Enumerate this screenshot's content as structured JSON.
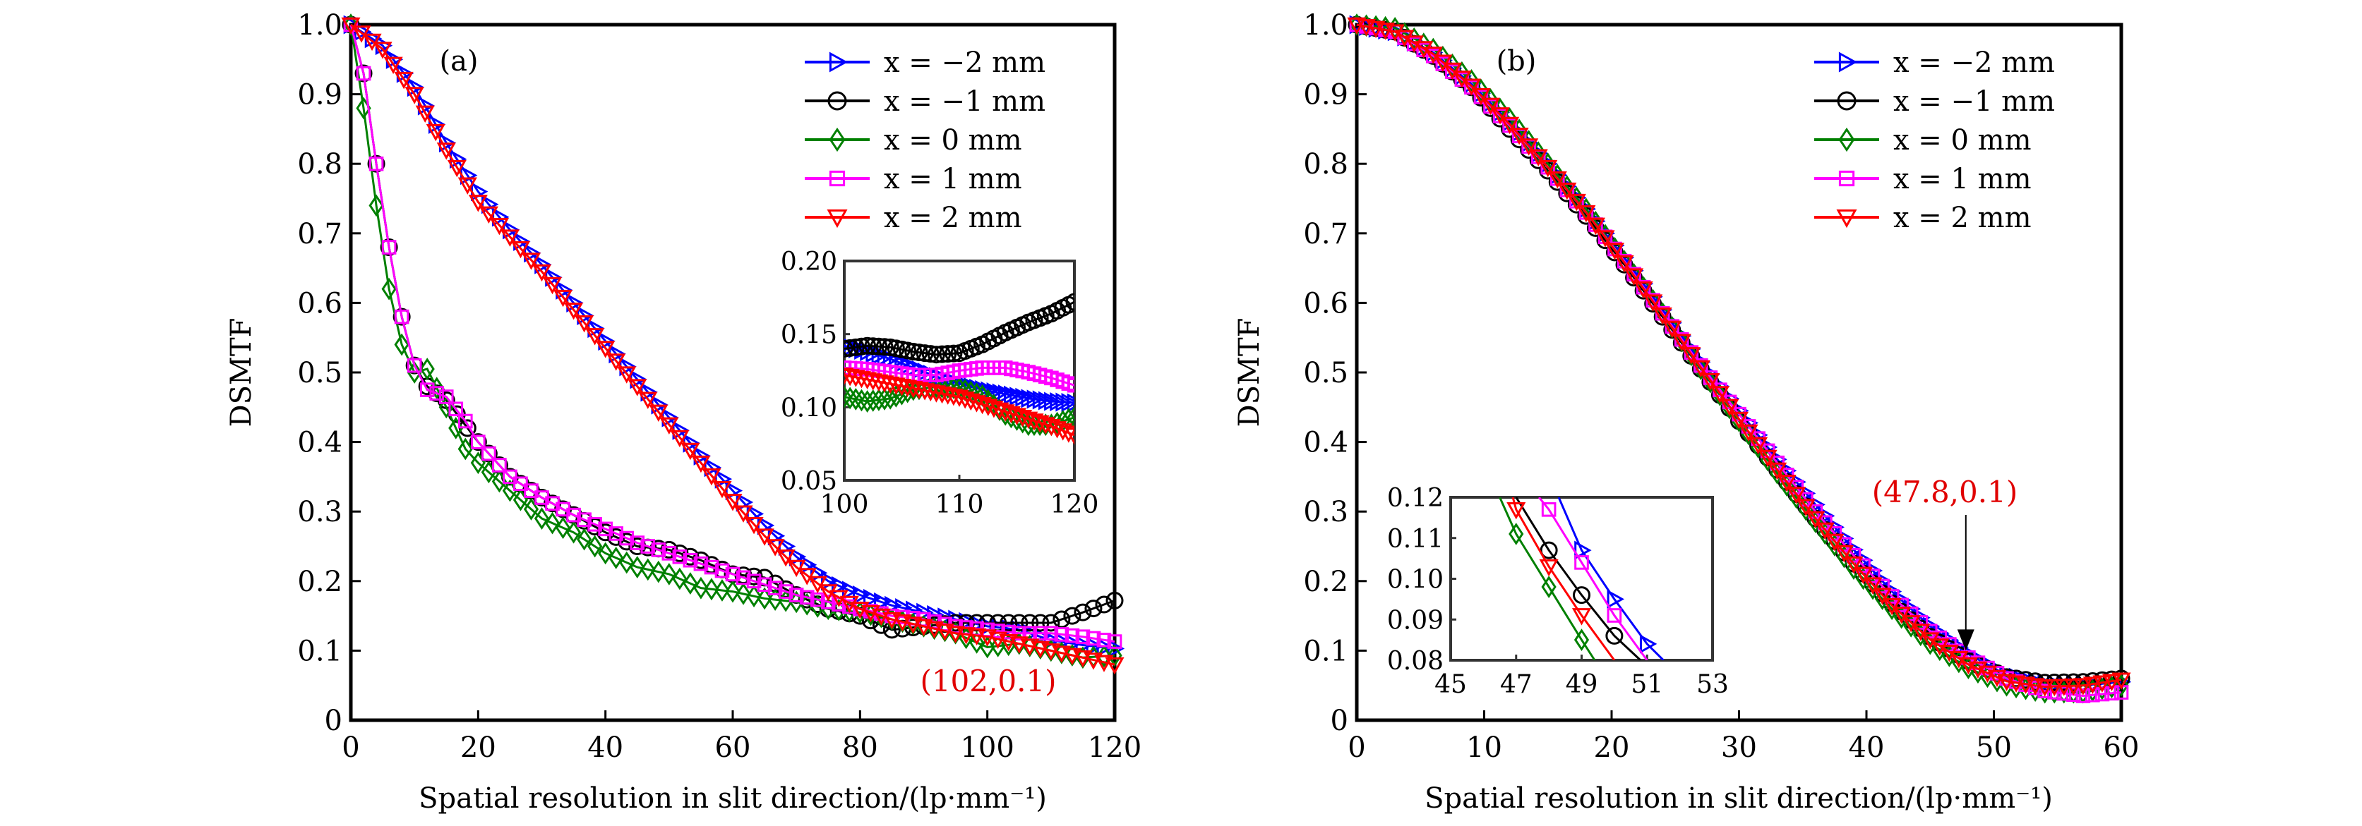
{
  "figure": {
    "panels": [
      "a",
      "b"
    ]
  },
  "chart_data": [
    {
      "id": "a",
      "type": "line",
      "panel_label": "(a)",
      "title": "",
      "xlabel": "Spatial resolution in slit direction/(lp·mm⁻¹)",
      "ylabel": "DSMTF",
      "xlim": [
        0,
        120
      ],
      "ylim": [
        0,
        1.0
      ],
      "xticks": [
        "0",
        "20",
        "40",
        "60",
        "80",
        "100",
        "120"
      ],
      "xtick_values": [
        0,
        20,
        40,
        60,
        80,
        100,
        120
      ],
      "yticks": [
        "0",
        "0.1",
        "0.2",
        "0.3",
        "0.4",
        "0.5",
        "0.6",
        "0.7",
        "0.8",
        "0.9",
        "1.0"
      ],
      "ytick_values": [
        0,
        0.1,
        0.2,
        0.3,
        0.4,
        0.5,
        0.6,
        0.7,
        0.8,
        0.9,
        1.0
      ],
      "grid": false,
      "legend_position": "top-right",
      "annotation": {
        "text": "(102,0.1)",
        "x": 102,
        "y": 0.1,
        "color": "#e00000"
      },
      "series": [
        {
          "name": "x = −2 mm",
          "color": "#0000ff",
          "marker": "triangle-right",
          "x": [
            0,
            5,
            10,
            15,
            20,
            25,
            30,
            35,
            40,
            45,
            50,
            55,
            60,
            65,
            70,
            75,
            80,
            85,
            90,
            95,
            100,
            105,
            110,
            115,
            120
          ],
          "y": [
            1.0,
            0.97,
            0.91,
            0.83,
            0.76,
            0.705,
            0.655,
            0.6,
            0.545,
            0.49,
            0.435,
            0.38,
            0.33,
            0.28,
            0.235,
            0.2,
            0.18,
            0.165,
            0.155,
            0.145,
            0.135,
            0.13,
            0.115,
            0.108,
            0.103
          ]
        },
        {
          "name": "x = −1 mm",
          "color": "#000000",
          "marker": "circle",
          "x": [
            0,
            2,
            4,
            6,
            8,
            10,
            12,
            15,
            20,
            25,
            30,
            35,
            40,
            45,
            50,
            55,
            60,
            65,
            70,
            75,
            80,
            85,
            90,
            95,
            100,
            105,
            110,
            115,
            120
          ],
          "y": [
            1.0,
            0.93,
            0.8,
            0.68,
            0.58,
            0.51,
            0.48,
            0.46,
            0.4,
            0.35,
            0.32,
            0.295,
            0.27,
            0.25,
            0.245,
            0.23,
            0.21,
            0.205,
            0.18,
            0.16,
            0.15,
            0.13,
            0.135,
            0.14,
            0.14,
            0.14,
            0.14,
            0.155,
            0.172
          ]
        },
        {
          "name": "x = 0 mm",
          "color": "#008000",
          "marker": "diamond",
          "x": [
            0,
            2,
            4,
            6,
            8,
            10,
            12,
            15,
            18,
            20,
            25,
            30,
            35,
            40,
            45,
            50,
            55,
            60,
            65,
            70,
            75,
            80,
            85,
            90,
            95,
            100,
            105,
            110,
            115,
            120
          ],
          "y": [
            1.0,
            0.88,
            0.74,
            0.62,
            0.54,
            0.5,
            0.505,
            0.45,
            0.39,
            0.37,
            0.33,
            0.29,
            0.27,
            0.24,
            0.22,
            0.21,
            0.19,
            0.185,
            0.175,
            0.17,
            0.16,
            0.155,
            0.145,
            0.135,
            0.125,
            0.105,
            0.11,
            0.1,
            0.09,
            0.093
          ]
        },
        {
          "name": "x = 1 mm",
          "color": "#ff00ff",
          "marker": "square",
          "x": [
            0,
            2,
            4,
            6,
            8,
            10,
            12,
            15,
            18,
            20,
            25,
            30,
            35,
            40,
            45,
            50,
            55,
            60,
            65,
            70,
            75,
            80,
            85,
            90,
            95,
            100,
            105,
            110,
            115,
            120
          ],
          "y": [
            1.0,
            0.93,
            0.8,
            0.68,
            0.58,
            0.51,
            0.475,
            0.465,
            0.43,
            0.4,
            0.35,
            0.32,
            0.295,
            0.275,
            0.255,
            0.24,
            0.225,
            0.21,
            0.195,
            0.18,
            0.17,
            0.16,
            0.15,
            0.145,
            0.135,
            0.13,
            0.125,
            0.125,
            0.12,
            0.113
          ]
        },
        {
          "name": "x = 2 mm",
          "color": "#ff0000",
          "marker": "triangle-down",
          "x": [
            0,
            5,
            10,
            15,
            20,
            25,
            30,
            35,
            40,
            45,
            50,
            55,
            60,
            65,
            70,
            75,
            80,
            85,
            90,
            95,
            100,
            105,
            110,
            115,
            120
          ],
          "y": [
            1.0,
            0.965,
            0.9,
            0.82,
            0.745,
            0.695,
            0.645,
            0.59,
            0.535,
            0.48,
            0.425,
            0.37,
            0.315,
            0.265,
            0.22,
            0.185,
            0.16,
            0.145,
            0.135,
            0.125,
            0.12,
            0.11,
            0.1,
            0.09,
            0.08
          ]
        }
      ],
      "inset": {
        "xlim": [
          100,
          120
        ],
        "ylim": [
          0.05,
          0.2
        ],
        "xticks": [
          "100",
          "110",
          "120"
        ],
        "xtick_values": [
          100,
          110,
          120
        ],
        "yticks": [
          "0.05",
          "0.10",
          "0.15",
          "0.20"
        ],
        "ytick_values": [
          0.05,
          0.1,
          0.15,
          0.2
        ],
        "series": [
          {
            "name": "x = −2 mm",
            "x": [
              100,
              102,
              104,
              106,
              108,
              110,
              112,
              114,
              116,
              118,
              120
            ],
            "y": [
              0.142,
              0.138,
              0.133,
              0.127,
              0.121,
              0.116,
              0.112,
              0.109,
              0.106,
              0.104,
              0.103
            ]
          },
          {
            "name": "x = −1 mm",
            "x": [
              100,
              102,
              104,
              106,
              108,
              110,
              112,
              114,
              116,
              118,
              120
            ],
            "y": [
              0.14,
              0.142,
              0.141,
              0.138,
              0.136,
              0.137,
              0.143,
              0.151,
              0.158,
              0.164,
              0.172
            ]
          },
          {
            "name": "x = 0 mm",
            "x": [
              100,
              102,
              104,
              106,
              108,
              110,
              112,
              114,
              116,
              118,
              120
            ],
            "y": [
              0.107,
              0.104,
              0.106,
              0.112,
              0.114,
              0.113,
              0.108,
              0.095,
              0.088,
              0.088,
              0.093
            ]
          },
          {
            "name": "x = 1 mm",
            "x": [
              100,
              102,
              104,
              106,
              108,
              110,
              112,
              114,
              116,
              118,
              120
            ],
            "y": [
              0.127,
              0.126,
              0.124,
              0.122,
              0.122,
              0.125,
              0.127,
              0.127,
              0.124,
              0.12,
              0.115
            ]
          },
          {
            "name": "x = 2 mm",
            "x": [
              100,
              102,
              104,
              106,
              108,
              110,
              112,
              114,
              116,
              118,
              120
            ],
            "y": [
              0.122,
              0.119,
              0.116,
              0.113,
              0.11,
              0.107,
              0.102,
              0.097,
              0.092,
              0.087,
              0.081
            ]
          }
        ]
      }
    },
    {
      "id": "b",
      "type": "line",
      "panel_label": "(b)",
      "title": "",
      "xlabel": "Spatial resolution in slit direction/(lp·mm⁻¹)",
      "ylabel": "DSMTF",
      "xlim": [
        0,
        60
      ],
      "ylim": [
        0,
        1.0
      ],
      "xticks": [
        "0",
        "10",
        "20",
        "30",
        "40",
        "50",
        "60"
      ],
      "xtick_values": [
        0,
        10,
        20,
        30,
        40,
        50,
        60
      ],
      "yticks": [
        "0",
        "0.1",
        "0.2",
        "0.3",
        "0.4",
        "0.5",
        "0.6",
        "0.7",
        "0.8",
        "0.9",
        "1.0"
      ],
      "ytick_values": [
        0,
        0.1,
        0.2,
        0.3,
        0.4,
        0.5,
        0.6,
        0.7,
        0.8,
        0.9,
        1.0
      ],
      "grid": false,
      "legend_position": "top-right",
      "annotation": {
        "text": "(47.8,0.1)",
        "x": 47.8,
        "y": 0.1,
        "color": "#e00000"
      },
      "series": [
        {
          "name": "x = −2 mm",
          "color": "#0000ff",
          "marker": "triangle-right",
          "x": [
            0,
            3,
            6,
            9,
            12,
            15,
            18,
            21,
            24,
            27,
            30,
            33,
            36,
            39,
            42,
            45,
            48,
            51,
            54,
            57,
            60
          ],
          "y": [
            1.0,
            0.99,
            0.96,
            0.915,
            0.86,
            0.8,
            0.735,
            0.665,
            0.59,
            0.515,
            0.445,
            0.375,
            0.31,
            0.245,
            0.185,
            0.135,
            0.095,
            0.065,
            0.052,
            0.05,
            0.055
          ]
        },
        {
          "name": "x = −1 mm",
          "color": "#000000",
          "marker": "circle",
          "x": [
            0,
            3,
            6,
            9,
            12,
            15,
            18,
            21,
            24,
            27,
            30,
            33,
            36,
            39,
            42,
            45,
            48,
            51,
            54,
            57,
            60
          ],
          "y": [
            1.0,
            0.99,
            0.955,
            0.91,
            0.85,
            0.79,
            0.725,
            0.655,
            0.58,
            0.505,
            0.43,
            0.36,
            0.29,
            0.225,
            0.168,
            0.12,
            0.085,
            0.062,
            0.054,
            0.055,
            0.06
          ]
        },
        {
          "name": "x = 0 mm",
          "color": "#008000",
          "marker": "diamond",
          "x": [
            0,
            3,
            6,
            9,
            12,
            15,
            18,
            21,
            24,
            27,
            30,
            33,
            36,
            39,
            42,
            45,
            48,
            51,
            54,
            57,
            60
          ],
          "y": [
            1.0,
            0.995,
            0.965,
            0.92,
            0.865,
            0.8,
            0.735,
            0.66,
            0.585,
            0.505,
            0.43,
            0.355,
            0.285,
            0.218,
            0.16,
            0.11,
            0.075,
            0.05,
            0.04,
            0.04,
            0.05
          ]
        },
        {
          "name": "x = 1 mm",
          "color": "#ff00ff",
          "marker": "square",
          "x": [
            0,
            3,
            6,
            9,
            12,
            15,
            18,
            21,
            24,
            27,
            30,
            33,
            36,
            39,
            42,
            45,
            48,
            51,
            54,
            57,
            60
          ],
          "y": [
            1.0,
            0.99,
            0.955,
            0.91,
            0.855,
            0.795,
            0.73,
            0.66,
            0.585,
            0.51,
            0.44,
            0.37,
            0.3,
            0.237,
            0.178,
            0.128,
            0.09,
            0.06,
            0.042,
            0.035,
            0.04
          ]
        },
        {
          "name": "x = 2 mm",
          "color": "#ff0000",
          "marker": "triangle-down",
          "x": [
            0,
            3,
            6,
            9,
            12,
            15,
            18,
            21,
            24,
            27,
            30,
            33,
            36,
            39,
            42,
            45,
            48,
            51,
            54,
            57,
            60
          ],
          "y": [
            1.0,
            0.99,
            0.958,
            0.912,
            0.857,
            0.795,
            0.73,
            0.658,
            0.583,
            0.507,
            0.433,
            0.36,
            0.29,
            0.225,
            0.165,
            0.116,
            0.08,
            0.056,
            0.048,
            0.05,
            0.058
          ]
        }
      ],
      "inset": {
        "xlim": [
          45,
          53
        ],
        "ylim": [
          0.08,
          0.12
        ],
        "xticks": [
          "45",
          "47",
          "49",
          "51",
          "53"
        ],
        "xtick_values": [
          45,
          47,
          49,
          51,
          53
        ],
        "yticks": [
          "0.08",
          "0.09",
          "0.10",
          "0.11",
          "0.12"
        ],
        "ytick_values": [
          0.08,
          0.09,
          0.1,
          0.11,
          0.12
        ],
        "series": [
          {
            "name": "x = −2 mm",
            "x": [
              48.3,
              49,
              50,
              51,
              51.5
            ],
            "y": [
              0.12,
              0.107,
              0.095,
              0.084,
              0.08
            ]
          },
          {
            "name": "x = −1 mm",
            "x": [
              47,
              48,
              49,
              50,
              50.8
            ],
            "y": [
              0.12,
              0.107,
              0.096,
              0.086,
              0.08
            ]
          },
          {
            "name": "x = 0 mm",
            "x": [
              46.5,
              47,
              48,
              49,
              49.4
            ],
            "y": [
              0.12,
              0.111,
              0.098,
              0.085,
              0.08
            ]
          },
          {
            "name": "x = 1 mm",
            "x": [
              47.7,
              48,
              49,
              50,
              51
            ],
            "y": [
              0.12,
              0.117,
              0.104,
              0.091,
              0.08
            ]
          },
          {
            "name": "x = 2 mm",
            "x": [
              46.9,
              47,
              48,
              49,
              50
            ],
            "y": [
              0.12,
              0.117,
              0.103,
              0.091,
              0.08
            ]
          }
        ]
      }
    }
  ]
}
